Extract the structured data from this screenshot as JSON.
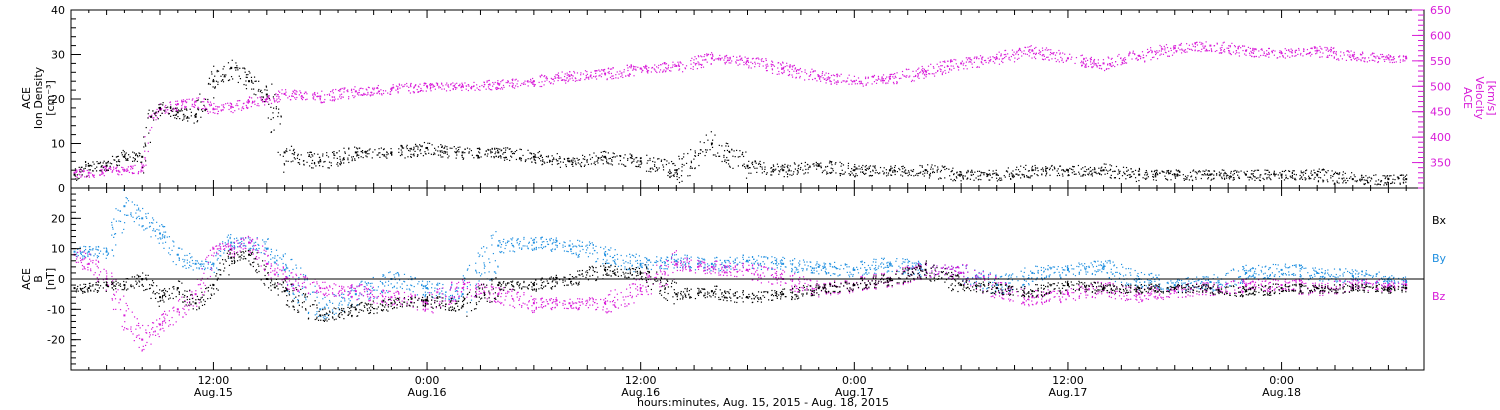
{
  "colors": {
    "black": "#000000",
    "magenta": "#d81bd8",
    "blue": "#1f8fe0"
  },
  "chart_data": [
    {
      "type": "scatter",
      "panel": "plasma",
      "ylabel_left": [
        "ACE",
        "Ion Density",
        "[cm⁻³]"
      ],
      "ylabel_right": [
        "ACE",
        "Velocity",
        "[km/s]"
      ],
      "ylim_left": [
        0,
        40
      ],
      "yticks_left": [
        0,
        10,
        20,
        30,
        40
      ],
      "ylim_right": [
        300,
        650
      ],
      "yticks_right": [
        350,
        400,
        450,
        500,
        550,
        600,
        650
      ],
      "series": [
        {
          "key": "density",
          "axis": "left",
          "color": "#000000",
          "x": [
            -7.8,
            -7,
            -6,
            -5,
            -4,
            -3.5,
            -3,
            -2,
            -1,
            0,
            1,
            2,
            3,
            4,
            6,
            8,
            10,
            12,
            14,
            16,
            18,
            20,
            22,
            24,
            26,
            28,
            30,
            32,
            34,
            36,
            38,
            40,
            42,
            44,
            46,
            48,
            50,
            52,
            54,
            56,
            58,
            60,
            62,
            64,
            66,
            67
          ],
          "y": [
            3,
            5,
            5,
            7,
            7,
            16,
            18,
            17,
            16,
            24,
            27,
            24,
            21,
            8,
            6,
            8,
            8,
            9,
            8,
            8,
            7,
            6,
            7,
            6,
            4,
            10,
            5,
            4,
            5,
            4,
            4,
            4,
            3,
            3,
            4,
            4,
            4,
            3,
            3,
            3,
            3,
            3,
            3,
            2,
            2,
            2
          ]
        },
        {
          "key": "velocity",
          "axis": "right",
          "color": "#d81bd8",
          "x": [
            -7.8,
            -7,
            -6,
            -5,
            -4,
            -3.5,
            -3,
            -2,
            -1,
            0,
            1,
            2,
            3,
            4,
            6,
            8,
            10,
            12,
            14,
            16,
            18,
            20,
            22,
            24,
            26,
            28,
            30,
            32,
            34,
            36,
            38,
            40,
            42,
            44,
            46,
            48,
            50,
            52,
            54,
            56,
            58,
            60,
            62,
            64,
            66,
            67
          ],
          "y": [
            330,
            330,
            335,
            335,
            340,
            440,
            455,
            465,
            470,
            455,
            460,
            470,
            475,
            485,
            480,
            490,
            495,
            500,
            500,
            505,
            510,
            520,
            525,
            535,
            540,
            555,
            550,
            535,
            520,
            510,
            515,
            530,
            545,
            555,
            570,
            555,
            545,
            560,
            575,
            580,
            570,
            565,
            570,
            560,
            555,
            555
          ]
        }
      ]
    },
    {
      "type": "scatter",
      "panel": "magnetic",
      "ylabel_left": [
        "ACE",
        "B",
        "[nT]"
      ],
      "ylim": [
        -30,
        30
      ],
      "yticks": [
        -20,
        -10,
        0,
        10,
        20
      ],
      "zero_line": true,
      "legend": [
        {
          "label": "Bx",
          "color": "#000000"
        },
        {
          "label": "By",
          "color": "#1f8fe0"
        },
        {
          "label": "Bz",
          "color": "#d81bd8"
        }
      ],
      "series": [
        {
          "key": "bx",
          "label": "Bx",
          "color": "#000000",
          "x": [
            -7.8,
            -7,
            -6,
            -5,
            -4,
            -3,
            -2,
            -1,
            0,
            1,
            2,
            3,
            4,
            6,
            8,
            10,
            12,
            14,
            16,
            18,
            20,
            22,
            24,
            26,
            28,
            30,
            32,
            34,
            36,
            38,
            40,
            42,
            44,
            46,
            48,
            50,
            52,
            54,
            56,
            58,
            60,
            62,
            64,
            66,
            67
          ],
          "y": [
            -3,
            -3,
            -2,
            -2,
            0,
            -6,
            -3,
            -8,
            -2,
            7,
            8,
            0,
            -4,
            -12,
            -10,
            -8,
            -7,
            -9,
            -2,
            -2,
            0,
            3,
            2,
            -5,
            -4,
            -6,
            -5,
            -3,
            -2,
            0,
            3,
            -2,
            -3,
            -4,
            -2,
            -3,
            -3,
            -3,
            -3,
            -4,
            -3,
            -3,
            -3,
            -3,
            -3
          ]
        },
        {
          "key": "by",
          "label": "By",
          "color": "#1f8fe0",
          "x": [
            -7.8,
            -7,
            -6,
            -5,
            -4,
            -3,
            -2,
            -1,
            0,
            1,
            2,
            3,
            4,
            6,
            8,
            10,
            12,
            14,
            16,
            18,
            20,
            22,
            24,
            26,
            28,
            30,
            32,
            34,
            36,
            38,
            40,
            42,
            44,
            46,
            48,
            50,
            52,
            54,
            56,
            58,
            60,
            62,
            64,
            66,
            67
          ],
          "y": [
            9,
            9,
            9,
            24,
            20,
            15,
            8,
            5,
            5,
            12,
            12,
            10,
            3,
            -10,
            -5,
            0,
            -3,
            -5,
            11,
            12,
            11,
            8,
            5,
            6,
            5,
            6,
            5,
            4,
            3,
            5,
            3,
            2,
            -2,
            2,
            3,
            4,
            0,
            -2,
            -1,
            2,
            3,
            2,
            1,
            0,
            -1
          ]
        },
        {
          "key": "bz",
          "label": "Bz",
          "color": "#d81bd8",
          "x": [
            -7.8,
            -7,
            -6,
            -5,
            -4,
            -3,
            -2,
            -1,
            0,
            1,
            2,
            3,
            4,
            6,
            8,
            10,
            12,
            14,
            16,
            18,
            20,
            22,
            24,
            26,
            28,
            30,
            32,
            34,
            36,
            38,
            40,
            42,
            44,
            46,
            48,
            50,
            52,
            54,
            56,
            58,
            60,
            62,
            64,
            66,
            67
          ],
          "y": [
            8,
            5,
            0,
            -12,
            -20,
            -15,
            -10,
            -5,
            10,
            10,
            12,
            5,
            0,
            -3,
            -4,
            -6,
            -8,
            -3,
            -5,
            -8,
            -8,
            -8,
            -3,
            5,
            4,
            3,
            0,
            -3,
            -2,
            0,
            3,
            2,
            -3,
            -6,
            -5,
            -3,
            -5,
            -4,
            -3,
            -2,
            -2,
            -3,
            -2,
            -2,
            -2
          ]
        }
      ]
    }
  ],
  "time_axis": {
    "range_hours": [
      -8,
      68
    ],
    "major_ticks": [
      {
        "h": 0,
        "label": "12:00",
        "date": "Aug.15"
      },
      {
        "h": 12,
        "label": "0:00",
        "date": "Aug.16"
      },
      {
        "h": 24,
        "label": "12:00",
        "date": "Aug.16"
      },
      {
        "h": 36,
        "label": "0:00",
        "date": "Aug.17"
      },
      {
        "h": 48,
        "label": "12:00",
        "date": "Aug.17"
      },
      {
        "h": 60,
        "label": "0:00",
        "date": "Aug.18"
      }
    ],
    "xlabel": "hours:minutes, Aug. 15, 2015 - Aug. 18, 2015"
  }
}
